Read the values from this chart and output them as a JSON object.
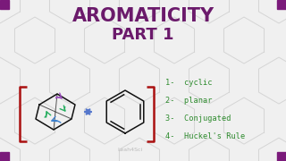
{
  "title_line1": "AROMATICITY",
  "title_line2": "PART 1",
  "title_color": "#6B1A6B",
  "background_color": "#F0F0F0",
  "list_items": [
    "1-  cyclic",
    "2-  planar",
    "3-  Conjugated",
    "4-  Huckel's Rule"
  ],
  "list_color": "#2E8B2E",
  "bracket_color": "#AA1111",
  "arrow_color": "#5577CC",
  "watermark": "Leah4Sci",
  "corner_color": "#7A1A7A",
  "hex_line_color": "#D5D5D5",
  "black": "#111111"
}
